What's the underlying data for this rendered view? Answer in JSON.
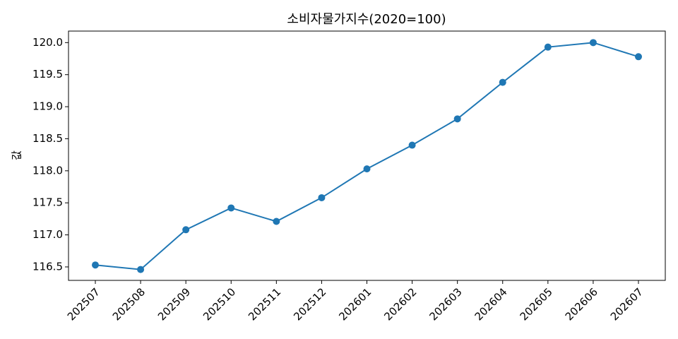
{
  "chart_data": {
    "type": "line",
    "title": "소비자물가지수(2020=100)",
    "y_label": "값",
    "categories": [
      "202507",
      "202508",
      "202509",
      "202510",
      "202511",
      "202512",
      "202601",
      "202602",
      "202603",
      "202604",
      "202605",
      "202606",
      "202607"
    ],
    "values": [
      116.53,
      116.46,
      117.08,
      117.42,
      117.21,
      117.58,
      118.03,
      118.4,
      118.81,
      119.38,
      119.93,
      120.0,
      119.78
    ],
    "color": "#1f77b4",
    "ylim": [
      116.29,
      120.18
    ],
    "yticks": [
      116.5,
      {
        "value": 117,
        "label": "117.0"
      },
      117.5,
      {
        "value": 118,
        "label": "118.0"
      },
      118.5,
      {
        "value": 119,
        "label": "119.0"
      },
      119.5,
      {
        "value": 120,
        "label": "120.0"
      }
    ],
    "grid": false
  }
}
